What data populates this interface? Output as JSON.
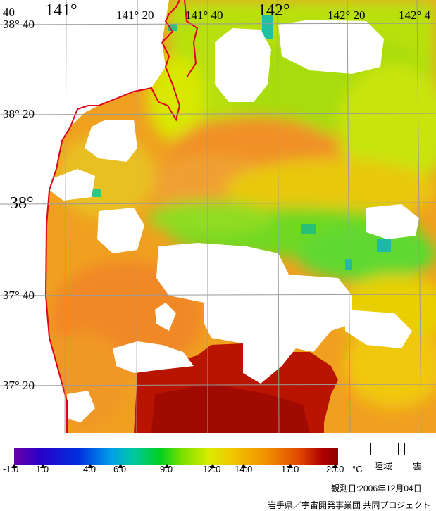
{
  "map": {
    "lon_labels": [
      {
        "text": "141°",
        "size": "lg"
      },
      {
        "text": "141° 20",
        "size": "sm"
      },
      {
        "text": "141° 40",
        "size": "sm"
      },
      {
        "text": "142°",
        "size": "lg"
      },
      {
        "text": "142° 20",
        "size": "sm"
      },
      {
        "text": "142° 4",
        "size": "sm"
      }
    ],
    "lat_labels": [
      {
        "text": "38° 40",
        "size": "sm"
      },
      {
        "text": "38° 20",
        "size": "sm"
      },
      {
        "text": "38°",
        "size": "lg"
      },
      {
        "text": "37° 40",
        "size": "sm"
      },
      {
        "text": "37° 20",
        "size": "sm"
      }
    ],
    "corner_label": "40",
    "coastline_color": "#e0001a",
    "land_color": "#ffffff",
    "cloud_color": "#ffffff"
  },
  "legend": {
    "ticks": [
      "-1.0",
      "1.0",
      "4.0",
      "6.0",
      "9.0",
      "12.0",
      "14.0",
      "17.0",
      "20.0"
    ],
    "unit": "°C",
    "land_label": "陸域",
    "cloud_label": "雲"
  },
  "footer": {
    "observation_date": "観測日:2006年12月04日",
    "credit": "岩手県／宇宙開発事業団 共同プロジェクト"
  }
}
